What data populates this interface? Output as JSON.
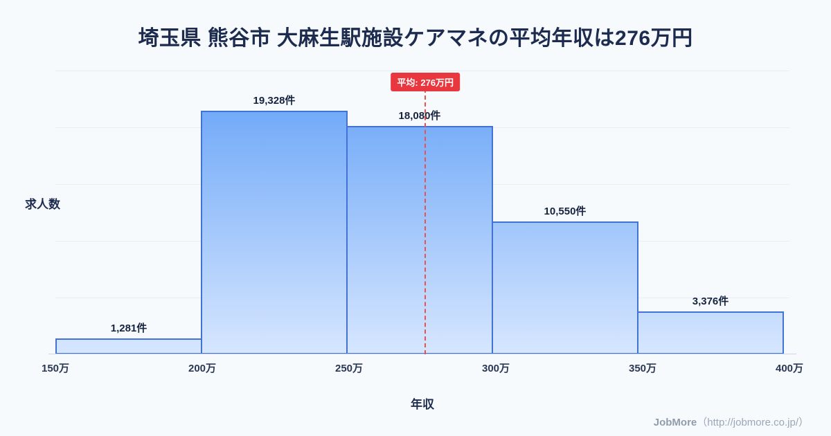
{
  "page": {
    "title": "埼玉県 熊谷市 大麻生駅施設ケアマネの平均年収は276万円",
    "footer": {
      "brand": "JobMore",
      "url_text": "（http://jobmore.co.jp/）"
    }
  },
  "chart_data": {
    "type": "bar",
    "title": "埼玉県 熊谷市 大麻生駅施設ケアマネの平均年収は276万円",
    "xlabel": "年収",
    "ylabel": "求人数",
    "x_ticks": [
      "150万",
      "200万",
      "250万",
      "300万",
      "350万",
      "400万"
    ],
    "x_range": [
      150,
      400
    ],
    "bin_width": 50,
    "bins": [
      {
        "range": "150万-200万",
        "count": 1281,
        "label": "1,281件"
      },
      {
        "range": "200万-250万",
        "count": 19328,
        "label": "19,328件"
      },
      {
        "range": "250万-300万",
        "count": 18080,
        "label": "18,080件"
      },
      {
        "range": "300万-350万",
        "count": 10550,
        "label": "10,550件"
      },
      {
        "range": "350万-400万",
        "count": 3376,
        "label": "3,376件"
      }
    ],
    "average": {
      "value": 276,
      "label": "平均: 276万円"
    },
    "ylim": [
      0,
      22600
    ],
    "grid": true,
    "legend": "none",
    "colors": {
      "bar_top": "#61a0f7",
      "bar_bottom": "#d6e6fe",
      "bar_border": "#4272d6",
      "average_line": "#e8524f",
      "average_badge_bg": "#e8373f",
      "title_text": "#1c2b4e",
      "background": "#f7fafd"
    }
  }
}
